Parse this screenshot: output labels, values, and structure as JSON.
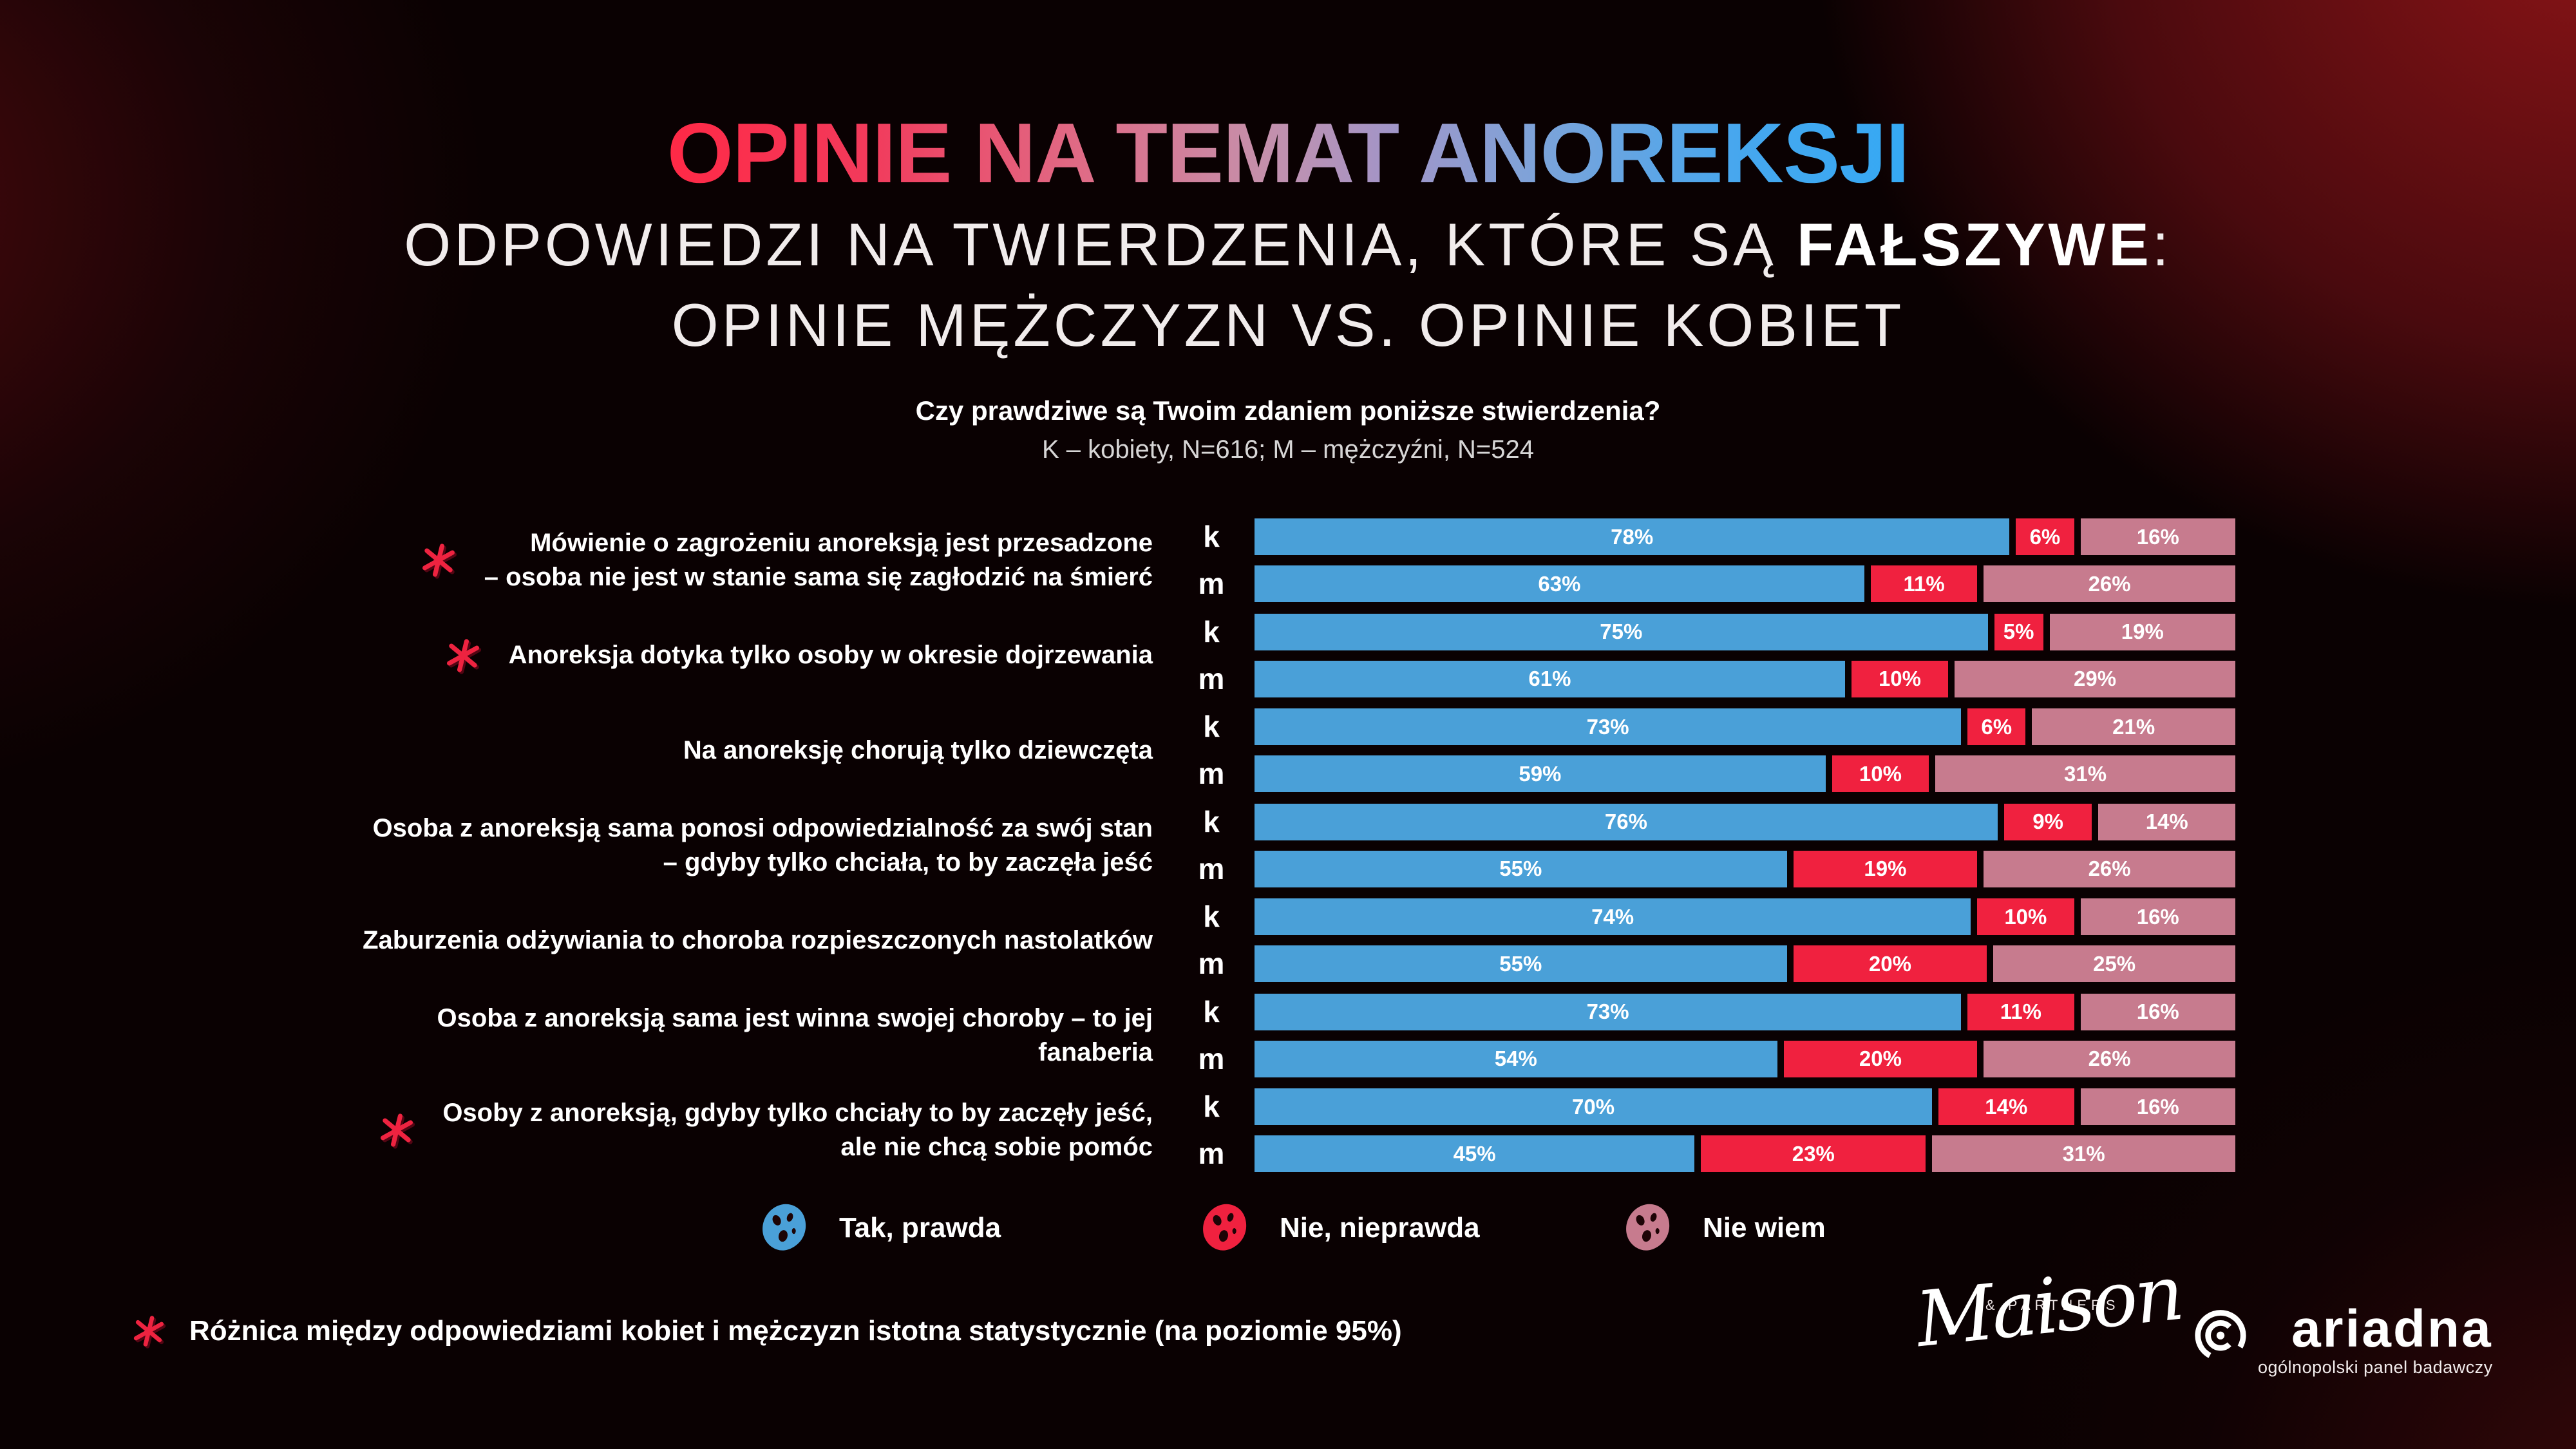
{
  "header": {
    "title": "OPINIE NA TEMAT ANOREKSJI",
    "subtitle1_prefix": "ODPOWIEDZI NA TWIERDZENIA, KTÓRE SĄ ",
    "subtitle1_bold": "FAŁSZYWE",
    "subtitle1_suffix": ":",
    "subtitle2": "OPINIE MĘŻCZYZN VS. OPINIE KOBIET",
    "question": "Czy prawdziwe są Twoim zdaniem poniższe stwierdzenia?",
    "sample_note": "K – kobiety, N=616; M – mężczyźni, N=524"
  },
  "chart_data": {
    "type": "bar",
    "orientation": "horizontal-stacked",
    "unit": "%",
    "xlim": [
      0,
      100
    ],
    "row_keys": [
      "k",
      "m"
    ],
    "series": [
      {
        "key": "tak-prawda",
        "name": "Tak, prawda",
        "color": "#4aa0d8"
      },
      {
        "key": "nie-nieprawda",
        "name": "Nie, nieprawda",
        "color": "#f0213f"
      },
      {
        "key": "nie-wiem",
        "name": "Nie wiem",
        "color": "#c77b8e"
      }
    ],
    "groups": [
      {
        "statement": "Mówienie o zagrożeniu anoreksją jest przesadzone – osoba nie jest w stanie sama się zagłodzić na śmierć",
        "lines": [
          "Mówienie o zagrożeniu anoreksją jest przesadzone",
          "– osoba nie jest w stanie sama się zagłodzić na śmierć"
        ],
        "significant": true,
        "values": {
          "k": [
            78,
            6,
            16
          ],
          "m": [
            63,
            11,
            26
          ]
        }
      },
      {
        "statement": "Anoreksja dotyka tylko osoby w okresie dojrzewania",
        "lines": [
          "Anoreksja dotyka tylko osoby w okresie dojrzewania"
        ],
        "significant": true,
        "values": {
          "k": [
            75,
            5,
            19
          ],
          "m": [
            61,
            10,
            29
          ]
        }
      },
      {
        "statement": "Na anoreksję chorują tylko dziewczęta",
        "lines": [
          "Na anoreksję chorują tylko dziewczęta"
        ],
        "significant": false,
        "values": {
          "k": [
            73,
            6,
            21
          ],
          "m": [
            59,
            10,
            31
          ]
        }
      },
      {
        "statement": "Osoba z anoreksją sama ponosi odpowiedzialność za swój stan – gdyby tylko chciała, to by zaczęła jeść",
        "lines": [
          "Osoba z anoreksją sama ponosi odpowiedzialność za swój stan",
          "– gdyby tylko chciała, to by zaczęła jeść"
        ],
        "significant": false,
        "values": {
          "k": [
            76,
            9,
            14
          ],
          "m": [
            55,
            19,
            26
          ]
        }
      },
      {
        "statement": "Zaburzenia odżywiania to choroba rozpieszczonych nastolatków",
        "lines": [
          "Zaburzenia odżywiania to choroba rozpieszczonych nastolatków"
        ],
        "significant": false,
        "values": {
          "k": [
            74,
            10,
            16
          ],
          "m": [
            55,
            20,
            25
          ]
        }
      },
      {
        "statement": "Osoba z anoreksją sama jest winna swojej choroby – to jej fanaberia",
        "lines": [
          "Osoba z anoreksją sama jest winna swojej choroby – to jej fanaberia"
        ],
        "significant": false,
        "values": {
          "k": [
            73,
            11,
            16
          ],
          "m": [
            54,
            20,
            26
          ]
        }
      },
      {
        "statement": "Osoby z anoreksją, gdyby tylko chciały to by zaczęły jeść, ale nie chcą sobie pomóc",
        "lines": [
          "Osoby z anoreksją, gdyby tylko chciały to by zaczęły jeść,",
          "ale nie chcą sobie pomóc"
        ],
        "significant": true,
        "values": {
          "k": [
            70,
            14,
            16
          ],
          "m": [
            45,
            23,
            31
          ]
        }
      }
    ]
  },
  "footnote": {
    "text": "Różnica między odpowiedziami kobiet i mężczyzn istotna statystycznie (na poziomie 95%)"
  },
  "logos": {
    "maison_name": "Maison",
    "maison_partners": "& PARTNERS",
    "ariadna_name": "ariadna",
    "ariadna_tagline": "ogólnopolski panel badawczy"
  }
}
